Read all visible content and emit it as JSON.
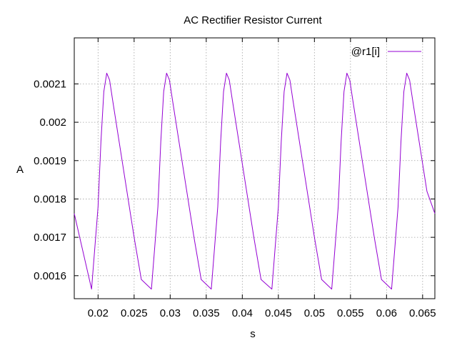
{
  "chart_data": {
    "type": "line",
    "title": "AC Rectifier Resistor Current",
    "xlabel": "s",
    "ylabel": "A",
    "xlim": [
      0.0167,
      0.0667
    ],
    "ylim": [
      0.00154,
      0.00222
    ],
    "xticks": [
      0.02,
      0.025,
      0.03,
      0.035,
      0.04,
      0.045,
      0.05,
      0.055,
      0.06,
      0.065
    ],
    "xtick_labels": [
      "0.02",
      "0.025",
      "0.03",
      "0.035",
      "0.04",
      "0.045",
      "0.05",
      "0.055",
      "0.06",
      "0.065"
    ],
    "yticks": [
      0.0016,
      0.0017,
      0.0018,
      0.0019,
      0.002,
      0.0021
    ],
    "ytick_labels": [
      "0.0016",
      "0.0017",
      "0.0018",
      "0.0019",
      "0.002",
      "0.0021"
    ],
    "grid": true,
    "legend_position": "top-right",
    "series": [
      {
        "name": "@r1[i]",
        "color": "#9400d3",
        "x": [
          0.0167,
          0.0191,
          0.02,
          0.0204,
          0.0208,
          0.0212,
          0.0216,
          0.022,
          0.023,
          0.024,
          0.025,
          0.026,
          0.0274,
          0.0283,
          0.0287,
          0.0291,
          0.0295,
          0.0299,
          0.0303,
          0.0313,
          0.0323,
          0.0333,
          0.0343,
          0.0357,
          0.0366,
          0.037,
          0.0374,
          0.0378,
          0.0382,
          0.0386,
          0.0396,
          0.0406,
          0.0416,
          0.0426,
          0.0441,
          0.045,
          0.0454,
          0.0458,
          0.0462,
          0.0466,
          0.047,
          0.048,
          0.049,
          0.05,
          0.051,
          0.0524,
          0.0533,
          0.0537,
          0.0541,
          0.0545,
          0.0549,
          0.0553,
          0.0563,
          0.0573,
          0.0583,
          0.0593,
          0.0607,
          0.0616,
          0.062,
          0.0624,
          0.0628,
          0.0632,
          0.0636,
          0.0646,
          0.0656,
          0.0667
        ],
        "y": [
          0.001762,
          0.001565,
          0.00178,
          0.00195,
          0.00208,
          0.002128,
          0.00211,
          0.00206,
          0.00194,
          0.00182,
          0.0017,
          0.00159,
          0.001565,
          0.00178,
          0.00195,
          0.00208,
          0.002128,
          0.00211,
          0.00206,
          0.00194,
          0.00182,
          0.0017,
          0.00159,
          0.001565,
          0.00178,
          0.00195,
          0.00208,
          0.002128,
          0.00211,
          0.00206,
          0.00194,
          0.00182,
          0.0017,
          0.00159,
          0.001565,
          0.00178,
          0.00195,
          0.00208,
          0.002128,
          0.00211,
          0.00206,
          0.00194,
          0.00182,
          0.0017,
          0.00159,
          0.001565,
          0.00178,
          0.00195,
          0.00208,
          0.002128,
          0.00211,
          0.00206,
          0.00194,
          0.00182,
          0.0017,
          0.00159,
          0.001565,
          0.00178,
          0.00195,
          0.00208,
          0.002128,
          0.00211,
          0.00206,
          0.00194,
          0.00182,
          0.001762
        ]
      }
    ]
  }
}
